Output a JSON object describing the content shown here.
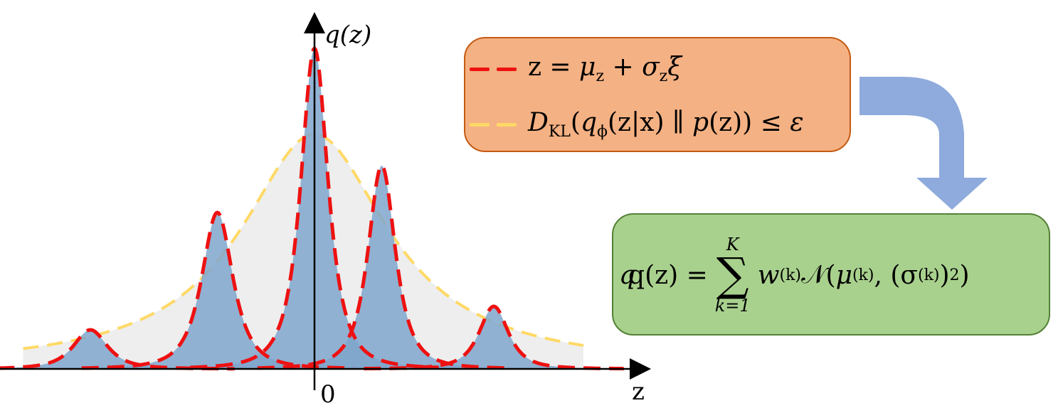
{
  "colors": {
    "component_fill": "#7fa6cc",
    "component_stroke": "#ee1111",
    "prior_fill": "#eeeeee",
    "prior_stroke": "#ffd966",
    "overlap": "#6a5a8a",
    "orange_box_bg": "#f4b183",
    "orange_box_border": "#c55a11",
    "green_box_bg": "#a9d18e",
    "green_box_border": "#538135",
    "arrow": "#8faadc"
  },
  "axes": {
    "y_label": "q(z)",
    "x_label": "z",
    "origin_label": "0"
  },
  "legend": {
    "line1": {
      "lhs": "z",
      "op": " = ",
      "mu": "μ",
      "mu_sub": "z",
      "plus": " + ",
      "sigma": "σ",
      "sigma_sub": "z",
      "xi": "ξ"
    },
    "line2": {
      "D": "D",
      "D_sub": "KL",
      "q": "q",
      "q_sub": "ϕ",
      "arg": "(z|x) ∥ ",
      "p": "p",
      "p_arg": "(z)",
      "leq": ") ≤ ",
      "eps": "ε"
    }
  },
  "mixture_equation": {
    "lhs": "q(z) = ",
    "sum_top": "K",
    "sum_bottom": "k=1",
    "w": "w",
    "w_sup": "(k)",
    "normal": "𝒩",
    "mu": "μ",
    "mu_sup": "(k)",
    "sigma": "(σ",
    "sigma_sup": "(k)",
    "sq_close": ")",
    "sq_sup": "2",
    "close": ")"
  },
  "chart_data": {
    "type": "area",
    "components": [
      {
        "center": -3.0,
        "height": 0.25,
        "width": 0.35
      },
      {
        "center": -1.3,
        "height": 1.0,
        "width": 0.32
      },
      {
        "center": 0.0,
        "height": 2.05,
        "width": 0.28
      },
      {
        "center": 0.9,
        "height": 1.3,
        "width": 0.28
      },
      {
        "center": 2.4,
        "height": 0.4,
        "width": 0.3
      }
    ],
    "prior": {
      "center": 0.0,
      "height": 1.5,
      "width": 1.2,
      "tails": "heavy"
    },
    "xlim": [
      -4.5,
      4.3
    ],
    "ylim": [
      0,
      2.3
    ]
  }
}
